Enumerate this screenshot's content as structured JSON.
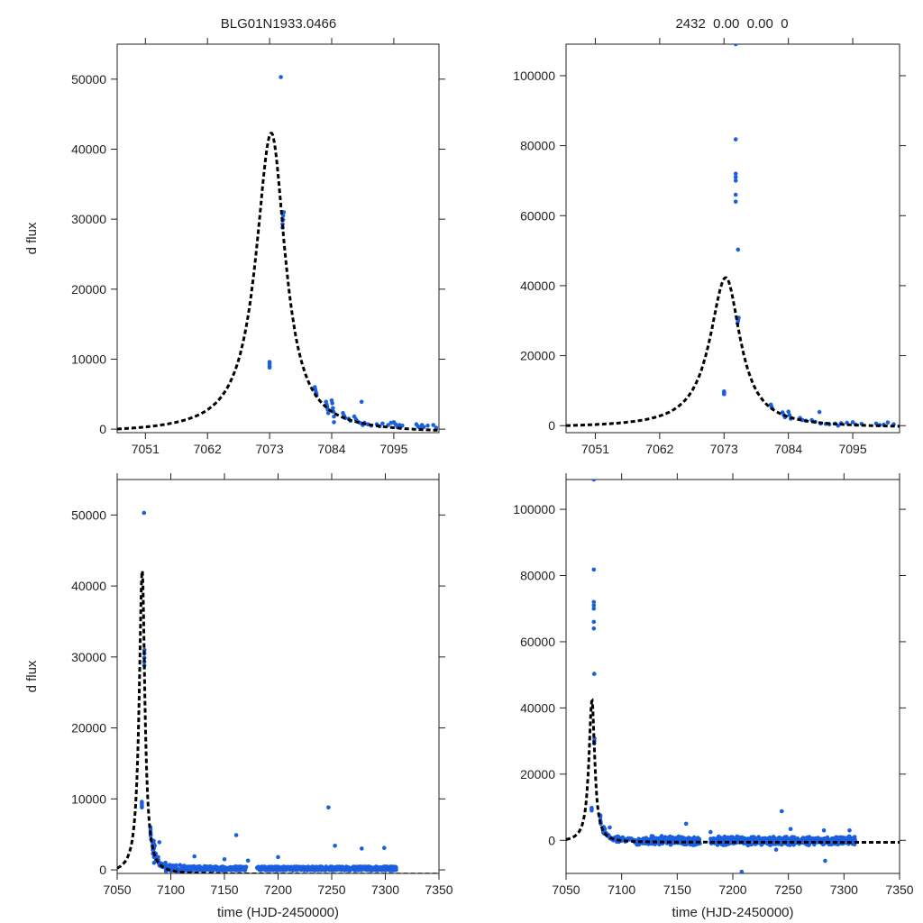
{
  "header": {
    "left_title": "BLG01N1933.0466",
    "right_title": "2432  0.00  0.00  0"
  },
  "colors": {
    "points": "#1a5fe0",
    "model": "#000000",
    "axes": "#222222"
  },
  "chart_data": [
    {
      "id": "top-left",
      "type": "scatter",
      "title": "BLG01N1933.0466",
      "xlabel": "",
      "ylabel": "d flux",
      "xlim": [
        7046,
        7103
      ],
      "ylim": [
        -500,
        55000
      ],
      "xticks": [
        7051,
        7062,
        7073,
        7084,
        7095
      ],
      "yticks": [
        0,
        10000,
        20000,
        30000,
        40000,
        50000
      ],
      "series": [
        {
          "name": "data",
          "style": "points"
        },
        {
          "name": "model",
          "style": "dashed-line"
        }
      ]
    },
    {
      "id": "top-right",
      "type": "scatter",
      "title": "2432  0.00  0.00  0",
      "xlabel": "",
      "ylabel": "",
      "xlim": [
        7046,
        7103
      ],
      "ylim": [
        -2000,
        109000
      ],
      "xticks": [
        7051,
        7062,
        7073,
        7084,
        7095
      ],
      "yticks": [
        0,
        20000,
        40000,
        60000,
        80000,
        100000
      ],
      "series": [
        {
          "name": "data",
          "style": "points"
        },
        {
          "name": "model",
          "style": "dashed-line"
        }
      ]
    },
    {
      "id": "bottom-left",
      "type": "scatter",
      "title": "",
      "xlabel": "time (HJD-2450000)",
      "ylabel": "d flux",
      "xlim": [
        7050,
        7350
      ],
      "ylim": [
        -500,
        55000
      ],
      "xticks": [
        7050,
        7100,
        7150,
        7200,
        7250,
        7300,
        7350
      ],
      "yticks": [
        0,
        10000,
        20000,
        30000,
        40000,
        50000
      ],
      "series": [
        {
          "name": "data",
          "style": "points"
        },
        {
          "name": "model",
          "style": "dashed-line"
        }
      ]
    },
    {
      "id": "bottom-right",
      "type": "scatter",
      "title": "",
      "xlabel": "time (HJD-2450000)",
      "ylabel": "",
      "xlim": [
        7050,
        7350
      ],
      "ylim": [
        -10000,
        109000
      ],
      "xticks": [
        7050,
        7100,
        7150,
        7200,
        7250,
        7300,
        7350
      ],
      "yticks": [
        0,
        20000,
        40000,
        60000,
        80000,
        100000
      ],
      "series": [
        {
          "name": "data",
          "style": "points"
        },
        {
          "name": "model",
          "style": "dashed-line"
        }
      ]
    }
  ],
  "model_curve": {
    "t0": 7073.3,
    "peak": 42300,
    "baseline": -600,
    "width_rise": 3.3,
    "width_fall": 3.0
  },
  "observations": {
    "left_panels": [
      [
        7073.0,
        9000
      ],
      [
        7073.0,
        9300
      ],
      [
        7073.0,
        9600
      ],
      [
        7073.0,
        8800
      ],
      [
        7075.0,
        50300
      ],
      [
        7075.3,
        28800
      ],
      [
        7075.3,
        29300
      ],
      [
        7075.4,
        29900
      ],
      [
        7075.4,
        30500
      ],
      [
        7075.5,
        31000
      ],
      [
        7081.0,
        6000
      ],
      [
        7081.1,
        5700
      ],
      [
        7081.2,
        5300
      ],
      [
        7081.3,
        5000
      ],
      [
        7081.3,
        4800
      ],
      [
        7083.0,
        3900
      ],
      [
        7083.1,
        3500
      ],
      [
        7083.2,
        3200
      ],
      [
        7083.3,
        2800
      ],
      [
        7083.4,
        2300
      ],
      [
        7084.0,
        4100
      ],
      [
        7084.1,
        3700
      ],
      [
        7084.2,
        3000
      ],
      [
        7084.3,
        2500
      ],
      [
        7084.4,
        1800
      ],
      [
        7084.4,
        1000
      ],
      [
        7086.0,
        2300
      ],
      [
        7086.2,
        1900
      ],
      [
        7086.4,
        1600
      ],
      [
        7087.0,
        1500
      ],
      [
        7087.3,
        1200
      ],
      [
        7088.0,
        1800
      ],
      [
        7088.3,
        1400
      ],
      [
        7088.6,
        1100
      ],
      [
        7089.0,
        900
      ],
      [
        7089.3,
        3900
      ],
      [
        7089.5,
        600
      ],
      [
        7089.8,
        900
      ],
      [
        7090.4,
        700
      ],
      [
        7091.0,
        500
      ],
      [
        7092.0,
        700
      ],
      [
        7092.5,
        400
      ],
      [
        7093.0,
        800
      ],
      [
        7094.0,
        600
      ],
      [
        7094.5,
        900
      ],
      [
        7095.0,
        1000
      ],
      [
        7095.3,
        700
      ],
      [
        7095.6,
        300
      ],
      [
        7096.0,
        600
      ],
      [
        7096.5,
        500
      ],
      [
        7099.0,
        700
      ],
      [
        7099.3,
        400
      ],
      [
        7099.6,
        200
      ],
      [
        7100.0,
        600
      ],
      [
        7100.3,
        300
      ],
      [
        7101.0,
        500
      ],
      [
        7102.0,
        600
      ],
      [
        7102.5,
        200
      ]
    ],
    "right_panels": [
      [
        7073.0,
        9000
      ],
      [
        7073.0,
        9400
      ],
      [
        7073.0,
        9800
      ],
      [
        7075.0,
        109000
      ],
      [
        7075.0,
        81800
      ],
      [
        7075.0,
        72000
      ],
      [
        7075.0,
        71000
      ],
      [
        7075.0,
        70000
      ],
      [
        7075.0,
        66000
      ],
      [
        7075.0,
        64000
      ],
      [
        7075.4,
        50300
      ],
      [
        7075.3,
        29300
      ],
      [
        7075.4,
        30000
      ],
      [
        7075.5,
        30800
      ],
      [
        7081.0,
        6000
      ],
      [
        7081.1,
        5500
      ],
      [
        7081.2,
        5000
      ],
      [
        7083.0,
        3800
      ],
      [
        7083.2,
        3100
      ],
      [
        7083.4,
        2400
      ],
      [
        7084.0,
        4000
      ],
      [
        7084.2,
        3000
      ],
      [
        7084.4,
        2000
      ],
      [
        7086.0,
        2200
      ],
      [
        7086.4,
        1600
      ],
      [
        7087.0,
        1400
      ],
      [
        7088.0,
        1600
      ],
      [
        7088.6,
        1100
      ],
      [
        7089.3,
        3900
      ],
      [
        7089.5,
        600
      ],
      [
        7090.4,
        500
      ],
      [
        7091.0,
        400
      ],
      [
        7092.0,
        600
      ],
      [
        7092.5,
        0
      ],
      [
        7093.0,
        700
      ],
      [
        7094.0,
        800
      ],
      [
        7095.0,
        1000
      ],
      [
        7095.5,
        300
      ],
      [
        7096.5,
        500
      ],
      [
        7099.0,
        600
      ],
      [
        7099.6,
        200
      ],
      [
        7100.3,
        300
      ],
      [
        7101.0,
        900
      ],
      [
        7102.0,
        400
      ]
    ],
    "late_left": [
      [
        7122,
        1900
      ],
      [
        7161,
        4900
      ],
      [
        7247,
        8800
      ],
      [
        7253,
        3400
      ],
      [
        7278,
        3000
      ],
      [
        7299,
        3100
      ],
      [
        7200,
        1800
      ],
      [
        7172,
        1300
      ],
      [
        7150,
        1500
      ]
    ],
    "late_right": [
      [
        7158,
        5000
      ],
      [
        7208,
        -9500
      ],
      [
        7244,
        8800
      ],
      [
        7252,
        3400
      ],
      [
        7282,
        3000
      ],
      [
        7283,
        -6200
      ],
      [
        7305,
        3000
      ],
      [
        7239,
        -2800
      ],
      [
        7180,
        2500
      ]
    ]
  }
}
